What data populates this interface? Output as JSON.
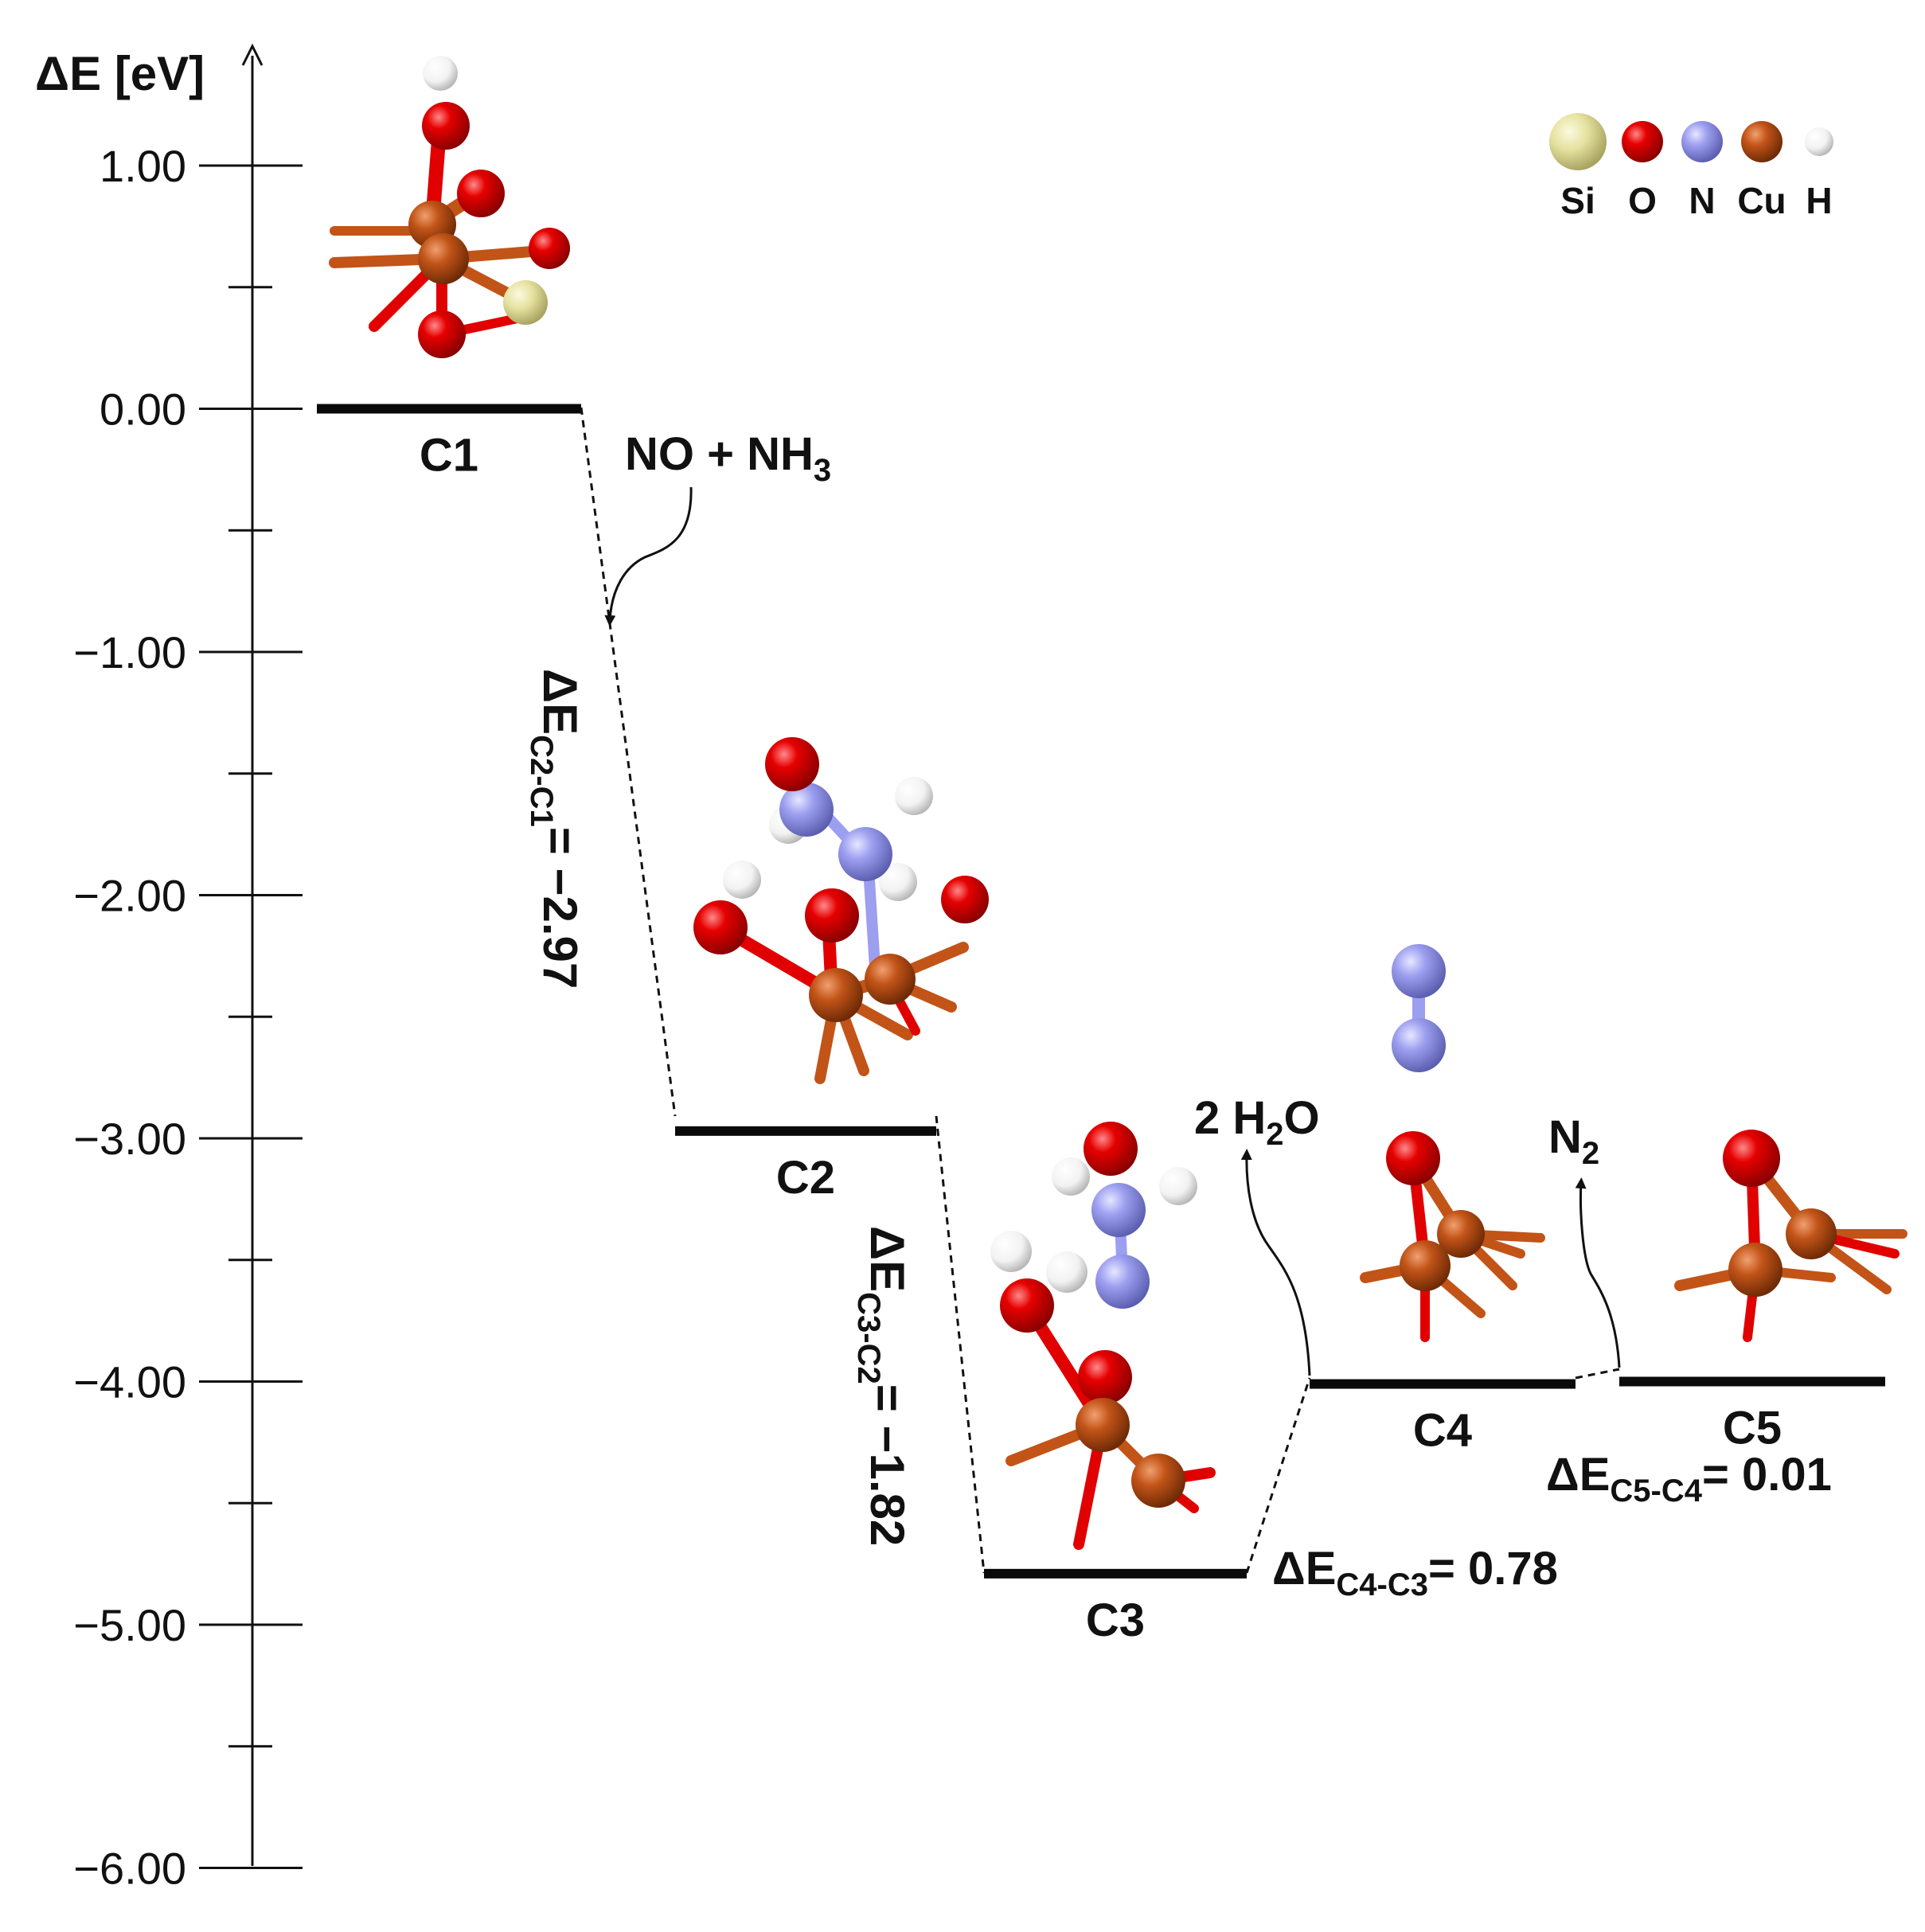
{
  "axis": {
    "label": "ΔE [eV]",
    "ticks": [
      "1.00",
      "0.00",
      "−1.00",
      "−2.00",
      "−3.00",
      "−4.00",
      "−5.00",
      "−6.00"
    ]
  },
  "legend": [
    "Si",
    "O",
    "N",
    "Cu",
    "H"
  ],
  "colors": {
    "Si": "#e6e2a0",
    "O": "#e00000",
    "N": "#9c9ef0",
    "Cu": "#c25418",
    "H": "#ffffff"
  },
  "states": [
    {
      "label": "C1",
      "energy": 0.0
    },
    {
      "label": "C2",
      "energy": -2.97
    },
    {
      "label": "C3",
      "energy": -4.79
    },
    {
      "label": "C4",
      "energy": -4.01
    },
    {
      "label": "C5",
      "energy": -4.0
    }
  ],
  "species": {
    "reactants": "NO + NH",
    "reactants_sub": "3",
    "water_a": "2 H",
    "water_sub": "2",
    "water_b": "O",
    "n2": "N",
    "n2_sub": "2"
  },
  "deltas": [
    {
      "sub": "C2-C1",
      "value": "= −2.97"
    },
    {
      "sub": "C3-C2",
      "value": "= −1.82"
    },
    {
      "sub": "C4-C3",
      "value": "= 0.78"
    },
    {
      "sub": "C5-C4",
      "value": "= 0.01"
    }
  ],
  "delta_symbol": "ΔE"
}
